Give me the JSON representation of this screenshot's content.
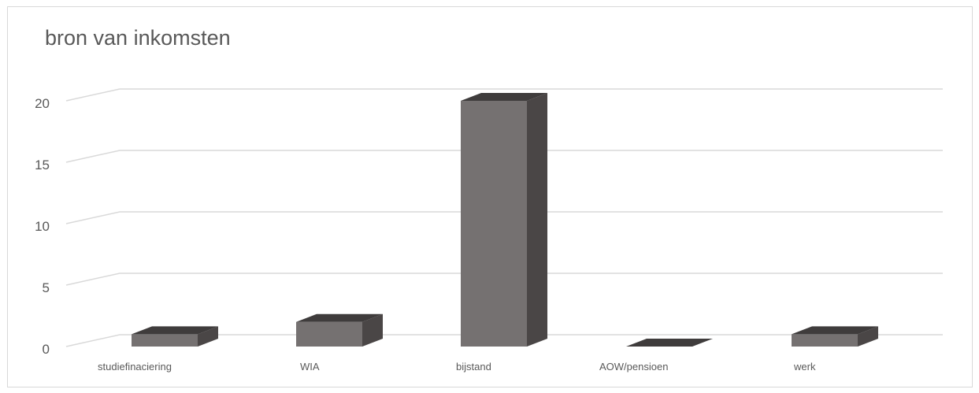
{
  "chart_data": {
    "type": "bar",
    "style": "3d-column",
    "title": "bron van inkomsten",
    "xlabel": "",
    "ylabel": "",
    "categories": [
      "studiefinaciering",
      "WIA",
      "bijstand",
      "AOW/pensioen",
      "werk"
    ],
    "values": [
      1,
      2,
      20,
      0,
      1
    ],
    "ylim": [
      0,
      20
    ],
    "yticks": [
      "0",
      "5",
      "10",
      "15",
      "20"
    ],
    "grid": true,
    "legend": "none",
    "colors": {
      "bar_front": "#757171",
      "bar_side": "#4a4646",
      "bar_top": "#3f3c3c",
      "gridline": "#d9d9d9",
      "text": "#595959"
    }
  }
}
